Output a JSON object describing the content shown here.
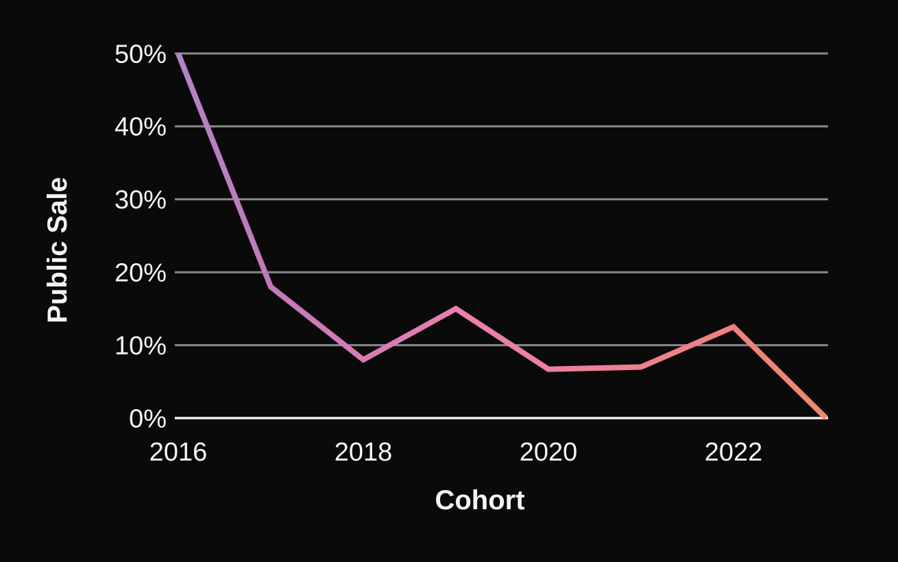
{
  "background_color": "#0a0a0a",
  "text_color": "#f5f5f5",
  "chart_data": {
    "type": "line",
    "title": "",
    "xlabel": "Cohort",
    "ylabel": "Public Sale",
    "x": [
      2016,
      2017,
      2018,
      2019,
      2020,
      2021,
      2022,
      2023
    ],
    "series": [
      {
        "name": "Public Sale",
        "values": [
          50,
          18,
          8,
          15,
          6.7,
          7,
          12.5,
          0
        ]
      }
    ],
    "ylim": [
      0,
      50
    ],
    "y_ticks": [
      0,
      10,
      20,
      30,
      40,
      50
    ],
    "y_tick_labels": [
      "0%",
      "10%",
      "20%",
      "30%",
      "40%",
      "50%"
    ],
    "x_ticks": [
      2016,
      2018,
      2020,
      2022
    ],
    "x_tick_labels": [
      "2016",
      "2018",
      "2020",
      "2022"
    ],
    "grid": true,
    "legend": false,
    "gridline_color": "#8a8a8a",
    "zero_line_color": "#f0f0f0",
    "line_gradient": [
      "#b184c7",
      "#c478bc",
      "#ec7fae",
      "#f08080",
      "#f18a6a"
    ],
    "line_gradient_stops": [
      0,
      0.15,
      0.45,
      0.85,
      1
    ],
    "line_width": 8
  }
}
